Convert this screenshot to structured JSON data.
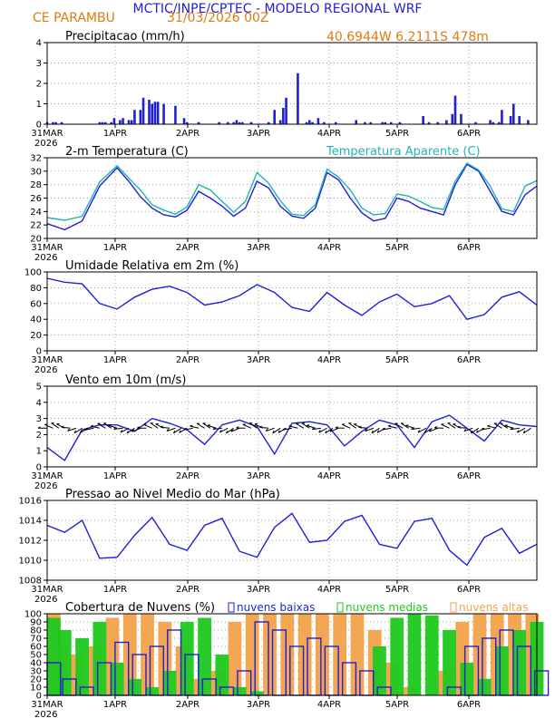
{
  "header": {
    "title": "MCTIC/INPE/CPTEC - MODELO REGIONAL WRF",
    "location": "CE PARAMBU",
    "run": "31/03/2026 00Z",
    "coords": "40.6944W  6.2111S  478m"
  },
  "colors": {
    "blue": "#1f1fd6",
    "orange": "#e07a12",
    "cyan": "#1fb5b5",
    "green": "#1ec81e",
    "cloud_orange": "#f2a24a",
    "black": "#000000"
  },
  "x_axis": {
    "start_label": "31MAR",
    "year": "2026",
    "labels": [
      "31MAR",
      "1APR",
      "2APR",
      "3APR",
      "4APR",
      "5APR",
      "6APR"
    ],
    "hours": 168
  },
  "chart_data": [
    {
      "id": "precip",
      "type": "bar",
      "title": "Precipitacao (mm/h)",
      "ylim": [
        0,
        4
      ],
      "yticks": [
        0,
        1,
        2,
        3,
        4
      ],
      "series": [
        {
          "name": "precipitacao",
          "color": "#1f1fd6",
          "x": [
            0,
            2,
            3,
            5,
            18,
            19,
            20,
            22,
            23,
            25,
            26,
            28,
            29,
            30,
            32,
            33,
            35,
            36,
            37,
            38,
            40,
            44,
            47,
            48,
            52,
            59,
            62,
            64,
            65,
            66,
            67,
            70,
            76,
            78,
            80,
            81,
            82,
            86,
            89,
            90,
            91,
            93,
            95,
            99,
            106,
            109,
            111,
            115,
            116,
            118,
            121,
            129,
            131,
            134,
            137,
            139,
            140,
            142,
            147,
            152,
            153,
            155,
            156,
            159,
            160,
            162,
            165
          ],
          "values": [
            0.1,
            0.1,
            0.1,
            0.1,
            0.1,
            0.1,
            0.1,
            0.1,
            0.3,
            0.2,
            0.3,
            0.2,
            0.2,
            0.7,
            0.7,
            1.3,
            1.2,
            1.0,
            1.1,
            1.1,
            1.0,
            0.9,
            0.3,
            0.1,
            0.1,
            0.1,
            0.1,
            0.1,
            0.2,
            0.1,
            0.1,
            0.1,
            0.1,
            0.7,
            0.2,
            0.8,
            1.3,
            2.5,
            0.1,
            0.2,
            0.1,
            0.3,
            0.1,
            0.1,
            0.2,
            0.1,
            0.1,
            0.1,
            0.1,
            0.1,
            0.1,
            0.4,
            0.1,
            0.1,
            0.2,
            0.5,
            1.4,
            0.5,
            0.1,
            0.2,
            0.1,
            0.1,
            0.7,
            0.4,
            1.0,
            0.4,
            0.2
          ]
        }
      ]
    },
    {
      "id": "temp",
      "type": "line",
      "title": "2-m Temperatura (C)",
      "title_right": "Temperatura Aparente (C)",
      "ylim": [
        20,
        32
      ],
      "yticks": [
        20,
        22,
        24,
        26,
        28,
        30,
        32
      ],
      "series": [
        {
          "name": "Temperatura",
          "color": "#1f1fd6",
          "x": [
            0,
            6,
            12,
            18,
            24,
            28,
            32,
            36,
            40,
            44,
            48,
            52,
            56,
            60,
            64,
            68,
            72,
            76,
            80,
            84,
            88,
            92,
            96,
            100,
            104,
            108,
            112,
            116,
            120,
            124,
            128,
            132,
            136,
            140,
            144,
            148,
            152,
            156,
            160,
            164,
            168
          ],
          "values": [
            22.2,
            21.3,
            22.6,
            27.8,
            30.5,
            28.5,
            26.2,
            24.5,
            23.5,
            23.2,
            24.2,
            27.0,
            26.0,
            24.8,
            23.3,
            24.5,
            28.5,
            27.5,
            24.8,
            23.3,
            23.0,
            24.5,
            29.8,
            28.7,
            26.0,
            23.8,
            22.6,
            23.0,
            26.0,
            25.5,
            24.5,
            24.0,
            23.5,
            28.0,
            31.0,
            30.0,
            27.0,
            24.0,
            23.5,
            26.5,
            27.8
          ]
        },
        {
          "name": "Temperatura Aparente",
          "color": "#1fb5b5",
          "x": [
            0,
            6,
            12,
            18,
            24,
            28,
            32,
            36,
            40,
            44,
            48,
            52,
            56,
            60,
            64,
            68,
            72,
            76,
            80,
            84,
            88,
            92,
            96,
            100,
            104,
            108,
            112,
            116,
            120,
            124,
            128,
            132,
            136,
            140,
            144,
            148,
            152,
            156,
            160,
            164,
            168
          ],
          "values": [
            23.1,
            22.7,
            23.3,
            28.4,
            30.8,
            29.0,
            27.2,
            25.0,
            24.2,
            23.6,
            24.7,
            28.0,
            27.2,
            25.5,
            23.9,
            25.5,
            29.8,
            28.2,
            25.6,
            23.6,
            23.4,
            25.0,
            30.3,
            29.1,
            27.2,
            24.5,
            23.5,
            23.7,
            26.6,
            26.3,
            25.5,
            24.6,
            24.3,
            28.5,
            31.2,
            30.2,
            27.8,
            24.4,
            24.0,
            27.8,
            28.6
          ]
        }
      ]
    },
    {
      "id": "rh",
      "type": "line",
      "title": "Umidade Relativa em 2m (%)",
      "ylim": [
        0,
        100
      ],
      "yticks": [
        0,
        20,
        40,
        60,
        80,
        100
      ],
      "series": [
        {
          "name": "Umidade Relativa",
          "color": "#1f1fd6",
          "x": [
            0,
            6,
            12,
            18,
            24,
            30,
            36,
            42,
            48,
            54,
            60,
            66,
            72,
            78,
            84,
            90,
            96,
            102,
            108,
            114,
            120,
            126,
            132,
            138,
            144,
            150,
            156,
            162,
            168
          ],
          "values": [
            92,
            87,
            85,
            60,
            53,
            68,
            78,
            82,
            74,
            58,
            62,
            70,
            84,
            74,
            55,
            50,
            74,
            58,
            45,
            62,
            72,
            56,
            60,
            70,
            40,
            46,
            68,
            75,
            58
          ]
        }
      ]
    },
    {
      "id": "wind",
      "type": "line",
      "title": "Vento em 10m (m/s)",
      "ylim": [
        0,
        5
      ],
      "yticks": [
        0,
        1,
        2,
        3,
        4,
        5
      ],
      "series": [
        {
          "name": "Velocidade do Vento",
          "color": "#1f1fd6",
          "x": [
            0,
            6,
            12,
            18,
            24,
            30,
            36,
            42,
            48,
            54,
            60,
            66,
            72,
            78,
            84,
            90,
            96,
            102,
            108,
            114,
            120,
            126,
            132,
            138,
            144,
            150,
            156,
            162,
            168
          ],
          "values": [
            1.2,
            0.4,
            2.3,
            2.6,
            2.6,
            2.2,
            3.0,
            2.7,
            2.3,
            1.4,
            2.6,
            2.9,
            2.5,
            0.8,
            2.7,
            2.8,
            2.6,
            1.3,
            2.2,
            2.9,
            2.6,
            1.2,
            2.8,
            3.2,
            2.4,
            1.6,
            2.9,
            2.6,
            2.5
          ]
        }
      ]
    },
    {
      "id": "pressure",
      "type": "line",
      "title": "Pressao ao Nivel Medio do Mar (hPa)",
      "ylim": [
        1008,
        1016
      ],
      "yticks": [
        1008,
        1010,
        1012,
        1014,
        1016
      ],
      "series": [
        {
          "name": "Pressao",
          "color": "#1f1fd6",
          "x": [
            0,
            6,
            12,
            18,
            24,
            30,
            36,
            42,
            48,
            54,
            60,
            66,
            72,
            78,
            84,
            90,
            96,
            102,
            108,
            114,
            120,
            126,
            132,
            138,
            144,
            150,
            156,
            162,
            168
          ],
          "values": [
            1013.5,
            1012.8,
            1014.0,
            1010.2,
            1010.3,
            1012.5,
            1014.3,
            1011.6,
            1011.0,
            1013.5,
            1014.2,
            1010.9,
            1010.3,
            1013.3,
            1014.7,
            1011.8,
            1012.0,
            1013.9,
            1014.5,
            1011.6,
            1011.2,
            1013.9,
            1014.2,
            1011.0,
            1009.5,
            1012.3,
            1013.2,
            1010.7,
            1011.6
          ]
        }
      ]
    },
    {
      "id": "clouds",
      "type": "bar",
      "title": "Cobertura de Nuvens (%)",
      "legend": [
        "nuvens baixas",
        "nuvens medias",
        "nuvens altas"
      ],
      "ylim": [
        0,
        100
      ],
      "yticks": [
        0,
        10,
        20,
        30,
        40,
        50,
        60,
        70,
        80,
        90,
        100
      ],
      "series": [
        {
          "name": "nuvens altas",
          "color": "#f2a24a",
          "x": [
            0,
            6,
            12,
            18,
            24,
            30,
            36,
            42,
            48,
            54,
            60,
            66,
            72,
            78,
            84,
            90,
            96,
            102,
            108,
            114,
            120,
            126,
            132,
            138,
            144,
            150,
            156,
            162,
            168
          ],
          "values": [
            100,
            60,
            50,
            60,
            95,
            100,
            100,
            90,
            60,
            20,
            30,
            90,
            100,
            100,
            100,
            100,
            100,
            100,
            100,
            80,
            40,
            10,
            0,
            30,
            90,
            100,
            100,
            100,
            100
          ]
        },
        {
          "name": "nuvens medias",
          "color": "#1ec81e",
          "x": [
            0,
            6,
            12,
            18,
            24,
            30,
            36,
            42,
            48,
            54,
            60,
            66,
            72,
            78,
            84,
            90,
            96,
            102,
            108,
            114,
            120,
            126,
            132,
            138,
            144,
            150,
            156,
            162,
            168
          ],
          "values": [
            95,
            80,
            70,
            90,
            40,
            20,
            10,
            30,
            90,
            95,
            50,
            10,
            5,
            0,
            0,
            0,
            0,
            0,
            0,
            60,
            95,
            100,
            98,
            80,
            40,
            20,
            60,
            80,
            90
          ]
        },
        {
          "name": "nuvens baixas",
          "color": "#1f1fd6",
          "x": [
            0,
            6,
            12,
            18,
            24,
            30,
            36,
            42,
            48,
            54,
            60,
            66,
            72,
            78,
            84,
            90,
            96,
            102,
            108,
            114,
            120,
            126,
            132,
            138,
            144,
            150,
            156,
            162,
            168
          ],
          "values": [
            40,
            20,
            10,
            40,
            65,
            50,
            60,
            80,
            50,
            20,
            10,
            30,
            90,
            80,
            60,
            70,
            60,
            40,
            30,
            10,
            0,
            0,
            0,
            10,
            60,
            70,
            80,
            60,
            30
          ]
        }
      ]
    }
  ]
}
